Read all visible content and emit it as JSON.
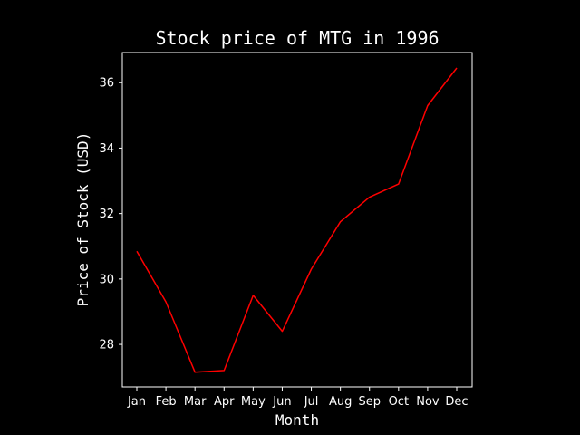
{
  "chart_data": {
    "type": "line",
    "title": "Stock price of MTG in 1996",
    "xlabel": "Month",
    "ylabel": "Price of Stock (USD)",
    "categories": [
      "Jan",
      "Feb",
      "Mar",
      "Apr",
      "May",
      "Jun",
      "Jul",
      "Aug",
      "Sep",
      "Oct",
      "Nov",
      "Dec"
    ],
    "series": [
      {
        "values": [
          30.85,
          29.3,
          27.15,
          27.2,
          29.5,
          28.4,
          30.3,
          31.75,
          32.5,
          32.9,
          35.3,
          36.45
        ],
        "color": "#ff0000"
      }
    ],
    "yticks": [
      28,
      30,
      32,
      34,
      36
    ],
    "ylim": [
      26.7,
      36.92
    ],
    "grid": false,
    "colors": {
      "background": "#000000",
      "foreground": "#ffffff",
      "line": "#ff0000"
    }
  }
}
